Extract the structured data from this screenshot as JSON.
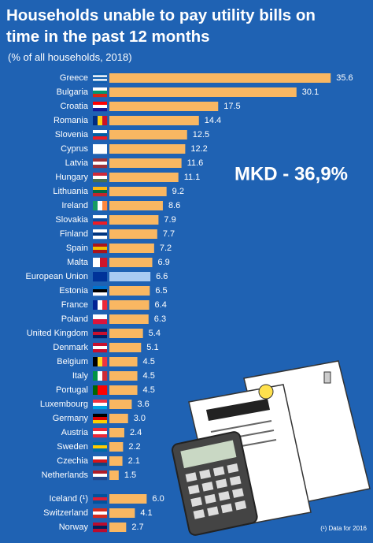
{
  "chart_data": {
    "type": "bar",
    "orientation": "horizontal",
    "title": "Households unable to pay utility bills on time in the past 12 months",
    "subtitle": "(% of all households, 2018)",
    "categories": [
      "Greece",
      "Bulgaria",
      "Croatia",
      "Romania",
      "Slovenia",
      "Cyprus",
      "Latvia",
      "Hungary",
      "Lithuania",
      "Ireland",
      "Slovakia",
      "Finland",
      "Spain",
      "Malta",
      "European Union",
      "Estonia",
      "France",
      "Poland",
      "United Kingdom",
      "Denmark",
      "Belgium",
      "Italy",
      "Portugal",
      "Luxembourg",
      "Germany",
      "Austria",
      "Sweden",
      "Czechia",
      "Netherlands",
      "Iceland (¹)",
      "Switzerland",
      "Norway"
    ],
    "values": [
      35.6,
      30.1,
      17.5,
      14.4,
      12.5,
      12.2,
      11.6,
      11.1,
      9.2,
      8.6,
      7.9,
      7.7,
      7.2,
      6.9,
      6.6,
      6.5,
      6.4,
      6.3,
      5.4,
      5.1,
      4.5,
      4.5,
      4.5,
      3.6,
      3.0,
      2.4,
      2.2,
      2.1,
      1.5,
      6.0,
      4.1,
      2.7
    ],
    "value_labels": [
      "35.6",
      "30.1",
      "17.5",
      "14.4",
      "12.5",
      "12.2",
      "11.6",
      "11.1",
      "9.2",
      "8.6",
      "7.9",
      "7.7",
      "7.2",
      "6.9",
      "6.6",
      "6.5",
      "6.4",
      "6.3",
      "5.4",
      "5.1",
      "4.5",
      "4.5",
      "4.5",
      "3.6",
      "3.0",
      "2.4",
      "2.2",
      "2.1",
      "1.5",
      "6.0",
      "4.1",
      "2.7"
    ],
    "color": "#f9b762",
    "highlight_color": "#a9cbf2",
    "highlight": "European Union",
    "annotations": [
      "MKD - 36,9%",
      "(¹) Data for 2016"
    ]
  }
}
